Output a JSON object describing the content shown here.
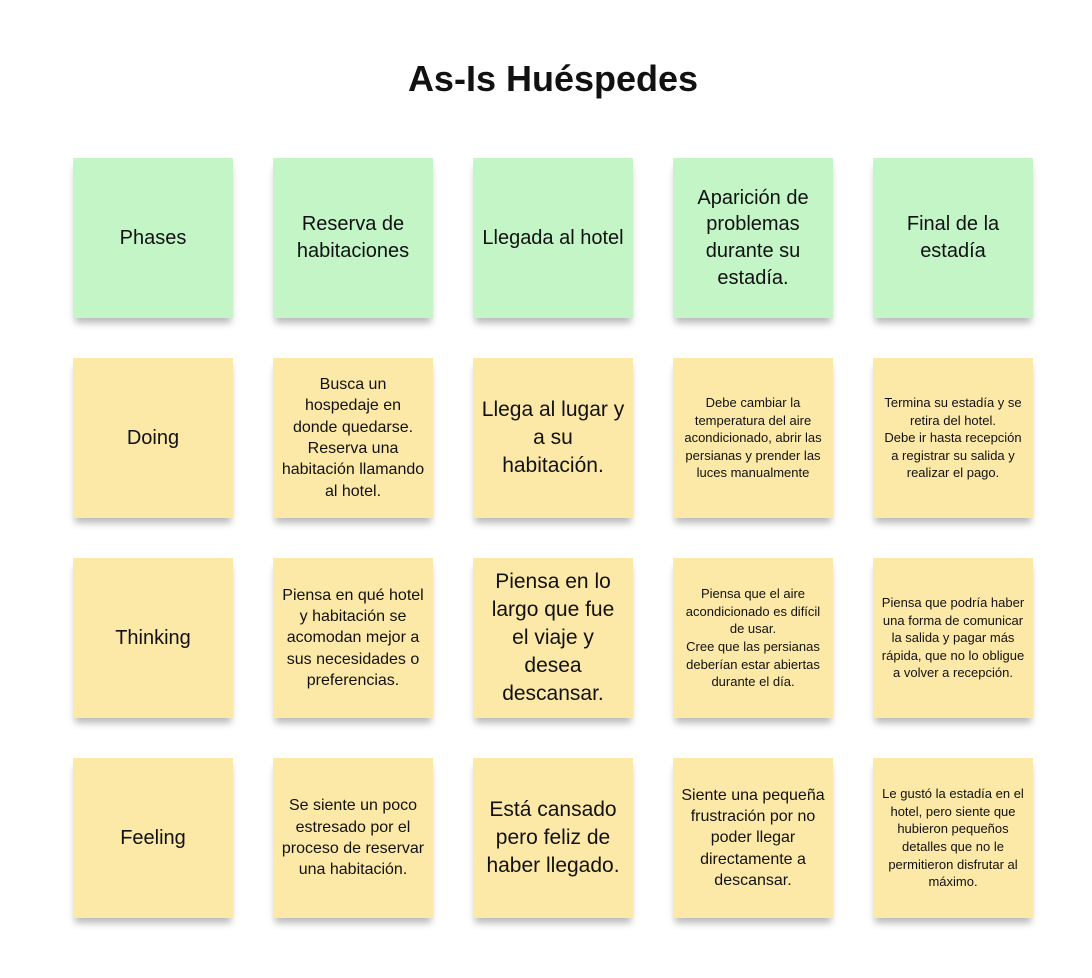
{
  "title": "As-Is Huéspedes",
  "colors": {
    "header_note": "#c3f5c7",
    "content_note": "#fde9a7"
  },
  "phases": {
    "label": "Phases",
    "items": [
      "Reserva de habitaciones",
      "Llegada al hotel",
      "Aparición de problemas durante su estadía.",
      "Final de la estadía"
    ]
  },
  "rows": [
    {
      "label": "Doing",
      "cells": [
        "Busca un hospedaje en donde quedarse.\nReserva una habitación llamando al hotel.",
        "Llega al lugar y a su habitación.",
        "Debe cambiar la temperatura del aire acondicionado, abrir las persianas y prender las luces manualmente",
        "Termina su estadía y se retira del hotel.\nDebe ir hasta recepción a registrar su salida y realizar el pago."
      ]
    },
    {
      "label": "Thinking",
      "cells": [
        "Piensa en qué hotel y habitación se acomodan mejor a sus necesidades o preferencias.",
        "Piensa en lo largo que fue el viaje y desea descansar.",
        "Piensa que el aire acondicionado es difícil de usar.\nCree que las persianas deberían estar abiertas durante el día.",
        "Piensa que podría haber una forma de comunicar la salida y pagar más rápida, que no lo obligue a volver a recepción."
      ]
    },
    {
      "label": "Feeling",
      "cells": [
        "Se siente un poco estresado por el proceso de reservar una habitación.",
        "Está cansado pero feliz de haber llegado.",
        "Siente una pequeña frustración por no poder llegar directamente a descansar.",
        "Le gustó la estadía en el hotel, pero siente que hubieron pequeños detalles que no le permitieron disfrutar al máximo."
      ]
    }
  ]
}
